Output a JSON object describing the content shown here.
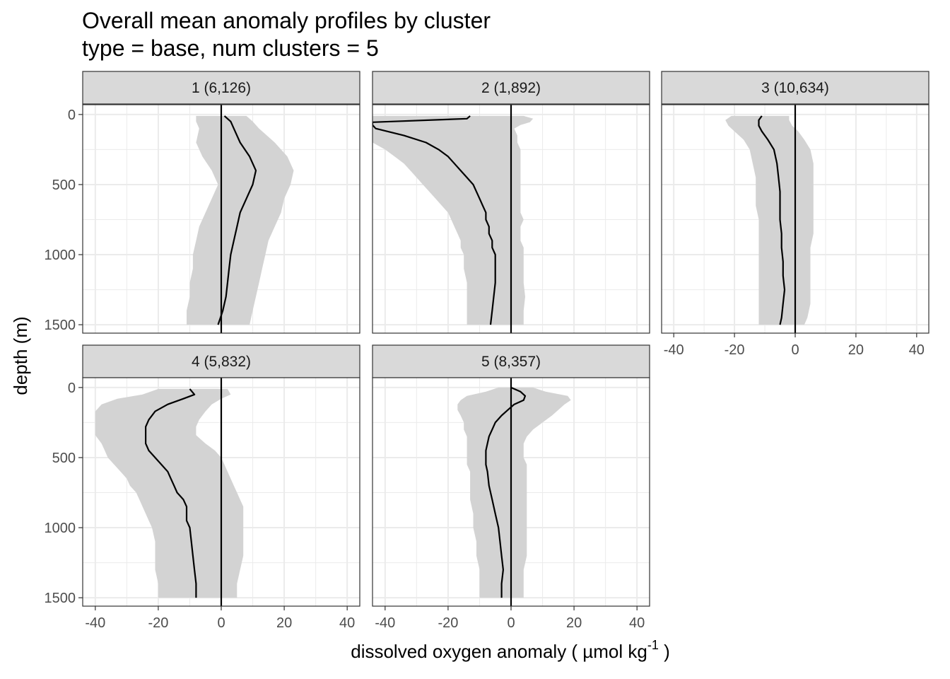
{
  "chart_data": {
    "type": "line",
    "title": "Overall mean anomaly profiles by cluster",
    "subtitle": "type = base, num clusters = 5",
    "xlabel": "dissolved oxygen anomaly ( µmol kg",
    "xlabel_sup": "-1",
    "xlabel_end": " )",
    "ylabel": "depth (m)",
    "xlim": [
      -44,
      44
    ],
    "ylim": [
      1560,
      -70
    ],
    "x_ticks": [
      -40,
      -20,
      0,
      20,
      40
    ],
    "x_tick_labels": [
      "-40",
      "-20",
      "0",
      "20",
      "40"
    ],
    "y_ticks": [
      0,
      500,
      1000,
      1500
    ],
    "y_tick_labels": [
      "0",
      "500",
      "1000",
      "1500"
    ],
    "reference_line_x": 0,
    "colors": {
      "line": "#000000",
      "ribbon": "#d3d3d3",
      "strip_fill": "#d9d9d9",
      "grid": "#ebebeb",
      "border": "#333333"
    },
    "panels": [
      {
        "label": "1 (6,126)",
        "depth": [
          10,
          50,
          100,
          200,
          300,
          400,
          500,
          600,
          700,
          800,
          900,
          1000,
          1100,
          1200,
          1300,
          1400,
          1500
        ],
        "mean": [
          1,
          3,
          4,
          6,
          9,
          11,
          10,
          8,
          6,
          5,
          4,
          3,
          2.5,
          2,
          1.5,
          0.5,
          -1
        ],
        "lower": [
          -8,
          -8,
          -7,
          -8,
          -6,
          -3,
          -1,
          -3,
          -5,
          -7,
          -8,
          -9,
          -9,
          -10,
          -10,
          -11,
          -11
        ],
        "upper": [
          8,
          10,
          12,
          17,
          21,
          23,
          22,
          20,
          19,
          17,
          15,
          14,
          13,
          12,
          11,
          10,
          9
        ]
      },
      {
        "label": "2 (1,892)",
        "depth": [
          10,
          30,
          55,
          75,
          100,
          150,
          200,
          250,
          300,
          350,
          400,
          450,
          500,
          550,
          600,
          650,
          700,
          750,
          800,
          850,
          900,
          950,
          1000,
          1100,
          1200,
          1300,
          1400,
          1500
        ],
        "mean": [
          -13,
          -14,
          -44,
          -44,
          -43,
          -34,
          -27,
          -23,
          -20,
          -18,
          -16,
          -14,
          -12,
          -11,
          -10,
          -9,
          -8,
          -8,
          -7,
          -7,
          -6,
          -6,
          -5,
          -5,
          -5,
          -5.5,
          -6,
          -6.5
        ],
        "lower": [
          -44,
          -44,
          -44,
          -44,
          -44,
          -44,
          -44,
          -40,
          -37,
          -34,
          -32,
          -30,
          -28,
          -26,
          -24,
          -22,
          -20,
          -19,
          -18,
          -17,
          -16,
          -16,
          -15,
          -15,
          -14,
          -14,
          -14,
          -14
        ],
        "upper": [
          4,
          7,
          6,
          3,
          1,
          2,
          2,
          3,
          3,
          3,
          3,
          3,
          3,
          3,
          3,
          3,
          3,
          4,
          3,
          3,
          3,
          4,
          4,
          4,
          4,
          4.5,
          4,
          4
        ]
      },
      {
        "label": "3 (10,634)",
        "depth": [
          10,
          40,
          80,
          120,
          180,
          250,
          350,
          450,
          550,
          650,
          750,
          850,
          950,
          1050,
          1150,
          1250,
          1350,
          1450,
          1500
        ],
        "mean": [
          -11,
          -12,
          -12,
          -11,
          -9,
          -7,
          -6,
          -5.5,
          -5,
          -5,
          -5,
          -4.5,
          -4.5,
          -4,
          -4,
          -3.5,
          -4,
          -4.5,
          -5
        ],
        "lower": [
          -21,
          -23,
          -22,
          -20,
          -17,
          -15,
          -14,
          -13,
          -13,
          -13,
          -12,
          -12,
          -12,
          -12,
          -12,
          -12,
          -12,
          -12,
          -12
        ],
        "upper": [
          -2,
          -2,
          -1,
          1,
          3,
          5,
          6,
          6,
          6,
          6,
          6,
          6,
          5,
          5,
          5,
          5,
          5,
          4,
          3
        ]
      },
      {
        "label": "4 (5,832)",
        "depth": [
          10,
          50,
          80,
          120,
          170,
          230,
          280,
          340,
          400,
          450,
          500,
          550,
          600,
          650,
          700,
          750,
          800,
          850,
          900,
          950,
          1000,
          1100,
          1200,
          1300,
          1400,
          1500
        ],
        "mean": [
          -10,
          -8.5,
          -12,
          -17,
          -21,
          -23,
          -24,
          -24,
          -24,
          -23,
          -21,
          -19,
          -17,
          -16,
          -15,
          -14,
          -12,
          -11,
          -11,
          -11,
          -10,
          -9.5,
          -9,
          -8.5,
          -8,
          -8
        ],
        "lower": [
          -20,
          -25,
          -33,
          -38,
          -40,
          -40,
          -40,
          -40,
          -38,
          -37,
          -36,
          -34,
          -32,
          -30,
          -29,
          -27,
          -26,
          -25,
          -24,
          -23,
          -22,
          -21,
          -21,
          -21,
          -20,
          -20
        ],
        "upper": [
          2,
          3,
          0,
          -3,
          -5,
          -7,
          -8,
          -8,
          -5,
          -2,
          0,
          1,
          2,
          3,
          4,
          5,
          6,
          7,
          7,
          7,
          7,
          7,
          7,
          6,
          5,
          5
        ],
        "ribbon_depth_offset": 0
      },
      {
        "label": "5 (8,357)",
        "depth": [
          0,
          30,
          60,
          90,
          120,
          160,
          200,
          250,
          300,
          350,
          400,
          450,
          500,
          550,
          600,
          700,
          800,
          900,
          1000,
          1100,
          1200,
          1300,
          1400,
          1500
        ],
        "mean": [
          0,
          3,
          4.5,
          4,
          1,
          -1,
          -3,
          -5,
          -6,
          -7,
          -7.5,
          -8,
          -8,
          -8,
          -7.5,
          -7,
          -6,
          -5,
          -4,
          -3.5,
          -3,
          -2.5,
          -3,
          -3
        ],
        "lower": [
          -4,
          -8,
          -14,
          -16,
          -17,
          -17,
          -16,
          -15,
          -15,
          -14,
          -14,
          -14,
          -14,
          -14,
          -13,
          -13,
          -13,
          -12,
          -12,
          -11,
          -11,
          -10,
          -10,
          -10
        ],
        "upper": [
          7,
          11,
          18,
          19,
          17,
          15,
          13,
          10,
          7,
          5,
          4,
          4,
          4,
          5,
          5,
          5,
          5,
          5,
          5,
          5,
          5,
          4,
          4,
          4
        ]
      }
    ]
  }
}
